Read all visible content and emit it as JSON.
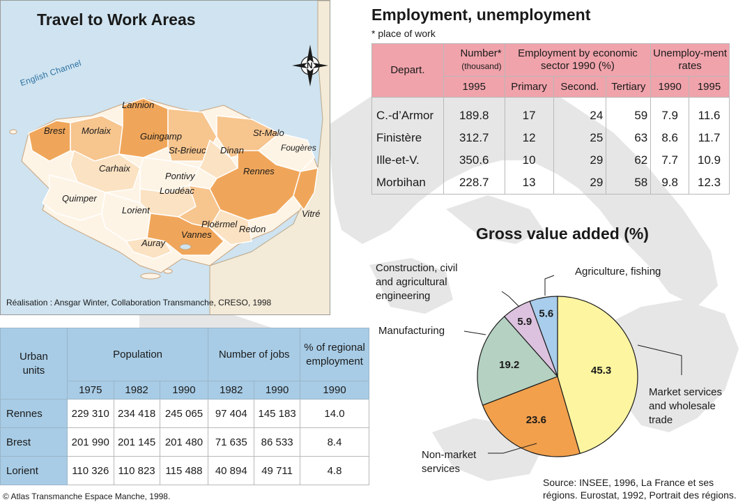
{
  "map": {
    "title": "Travel to Work Areas",
    "sea_label": "English Channel",
    "compass_letter": "N",
    "credit": "Réalisation : Ansgar Winter, Collaboration Transmanche, CRESO, 1998",
    "towns": [
      "Lannion",
      "Brest",
      "Morlaix",
      "Guingamp",
      "St-Malo",
      "St-Brieuc",
      "Dinan",
      "Fougères",
      "Carhaix",
      "Rennes",
      "Pontivy",
      "Loudéac",
      "Quimper",
      "Vitré",
      "Lorient",
      "Ploërmel",
      "Redon",
      "Vannes",
      "Auray"
    ],
    "colors": {
      "sea": "#cfe3f0",
      "land_outside": "#f3ead7",
      "dark": "#f0a65a",
      "medium": "#f7c58e",
      "light": "#fbe2c2",
      "pale": "#fef4e6"
    }
  },
  "employment": {
    "title": "Employment, unemployment",
    "note": "* place of work",
    "headers": {
      "depart": "Depart.",
      "number": "Number*",
      "number_unit": "(thousand)",
      "sector": "Employment by economic sector 1990 (%)",
      "unemp": "Unemploy-ment rates",
      "year_1995": "1995",
      "primary": "Primary",
      "second": "Second.",
      "tertiary": "Tertiary",
      "u1990": "1990",
      "u1995": "1995"
    },
    "rows": [
      {
        "dept": "C.-d’Armor",
        "number": "189.8",
        "primary": "17",
        "second": "24",
        "tertiary": "59",
        "u1990": "7.9",
        "u1995": "11.6"
      },
      {
        "dept": "Finistère",
        "number": "312.7",
        "primary": "12",
        "second": "25",
        "tertiary": "63",
        "u1990": "8.6",
        "u1995": "11.7"
      },
      {
        "dept": "Ille-et-V.",
        "number": "350.6",
        "primary": "10",
        "second": "29",
        "tertiary": "62",
        "u1990": "7.7",
        "u1995": "10.9"
      },
      {
        "dept": "Morbihan",
        "number": "228.7",
        "primary": "13",
        "second": "29",
        "tertiary": "58",
        "u1990": "9.8",
        "u1995": "12.3"
      }
    ],
    "header_color": "#f0a3ab"
  },
  "urban": {
    "headers": {
      "units": "Urban units",
      "population": "Population",
      "jobs": "Number of jobs",
      "regional": "% of regional employment",
      "p1975": "1975",
      "p1982": "1982",
      "p1990": "1990",
      "j1982": "1982",
      "j1990": "1990",
      "r1990": "1990"
    },
    "rows": [
      {
        "unit": "Rennes",
        "p1975": "229 310",
        "p1982": "234 418",
        "p1990": "245 065",
        "j1982": "97 404",
        "j1990": "145 183",
        "regional": "14.0"
      },
      {
        "unit": "Brest",
        "p1975": "201 990",
        "p1982": "201 145",
        "p1990": "201 480",
        "j1982": "71 635",
        "j1990": "86 533",
        "regional": "8.4"
      },
      {
        "unit": "Lorient",
        "p1975": "110 326",
        "p1982": "110 823",
        "p1990": "115 488",
        "j1982": "40 894",
        "j1990": "49 711",
        "regional": "4.8"
      }
    ],
    "header_color": "#a8cce6"
  },
  "atlas_credit": "© Atlas Transmanche Espace Manche, 1998.",
  "gva": {
    "title": "Gross value added (%)",
    "slices": [
      {
        "name": "Market services and wholesale trade",
        "value": 45.3,
        "color": "#fdf5a0"
      },
      {
        "name": "Non-market services",
        "value": 23.6,
        "color": "#f2a04c"
      },
      {
        "name": "Manufacturing",
        "value": 19.2,
        "color": "#b4d1c2"
      },
      {
        "name": "Construction, civil and agricultural engineering",
        "value": 5.9,
        "color": "#dcc2de"
      },
      {
        "name": "Agriculture, fishing",
        "value": 5.6,
        "color": "#a9cdec"
      }
    ],
    "labels": {
      "market": [
        "Market services",
        "and wholesale",
        "trade"
      ],
      "nonmarket": [
        "Non-market",
        "services"
      ],
      "manufacturing": "Manufacturing",
      "construction": [
        "Construction, civil",
        "and agricultural",
        "engineering"
      ],
      "agriculture": "Agriculture, fishing"
    }
  },
  "source": [
    "Source: INSEE, 1996, La France et ses",
    "régions. Eurostat, 1992, Portrait des régions."
  ]
}
